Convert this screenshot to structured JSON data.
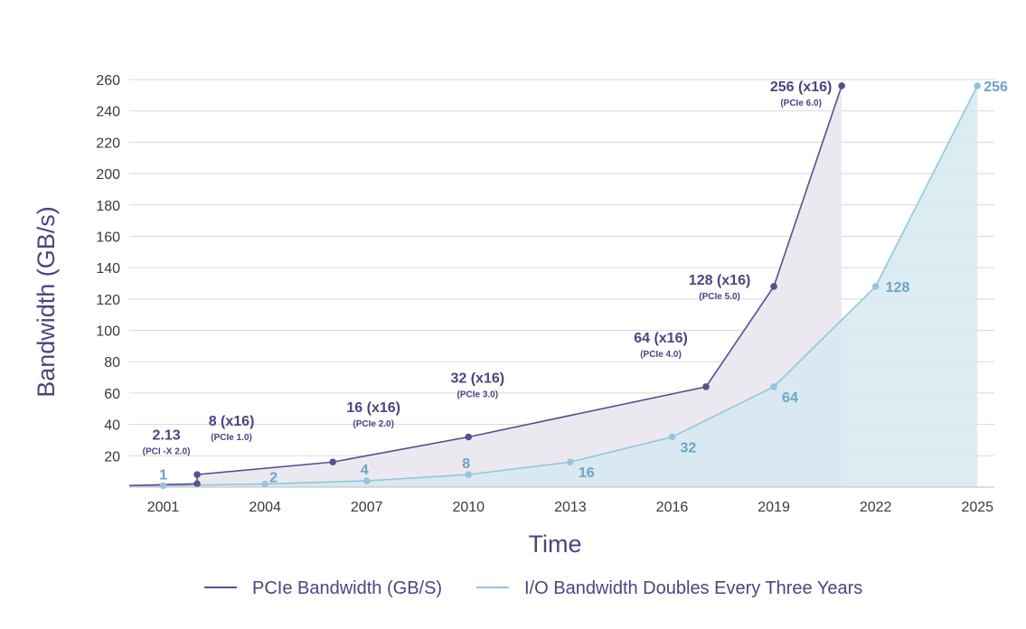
{
  "chart_data": {
    "type": "line",
    "title": "",
    "xlabel": "Time",
    "ylabel": "Bandwidth (GB/s)",
    "x_ticks": [
      2001,
      2004,
      2007,
      2010,
      2013,
      2016,
      2019,
      2022,
      2025
    ],
    "y_ticks": [
      20,
      40,
      60,
      80,
      100,
      120,
      140,
      160,
      180,
      200,
      220,
      240,
      260
    ],
    "xlim": [
      2000,
      2025.5
    ],
    "ylim": [
      0,
      260
    ],
    "grid": true,
    "legend_position": "bottom",
    "series": [
      {
        "name": "PCIe Bandwidth (GB/S)",
        "color": "#5a4f8e",
        "fill": "#ece8f0",
        "points": [
          {
            "x": 2002,
            "y": 2.13,
            "label": "2.13",
            "sub": "(PCI -X 2.0)"
          },
          {
            "x": 2002,
            "y": 8,
            "label": "8 (x16)",
            "sub": "(PCIe 1.0)"
          },
          {
            "x": 2006,
            "y": 16,
            "label": "16 (x16)",
            "sub": "(PCIe 2.0)"
          },
          {
            "x": 2010,
            "y": 32,
            "label": "32 (x16)",
            "sub": "(PCIe 3.0)"
          },
          {
            "x": 2017,
            "y": 64,
            "label": "64 (x16)",
            "sub": "(PCIe 4.0)"
          },
          {
            "x": 2019,
            "y": 128,
            "label": "128 (x16)",
            "sub": "(PCIe 5.0)"
          },
          {
            "x": 2021,
            "y": 256,
            "label": "256 (x16)",
            "sub": "(PCIe 6.0)"
          }
        ]
      },
      {
        "name": "I/O Bandwidth Doubles Every Three Years",
        "color": "#93c5db",
        "fill": "#d6e9f1",
        "points": [
          {
            "x": 2001,
            "y": 1,
            "label": "1"
          },
          {
            "x": 2004,
            "y": 2,
            "label": "2"
          },
          {
            "x": 2007,
            "y": 4,
            "label": "4"
          },
          {
            "x": 2010,
            "y": 8,
            "label": "8"
          },
          {
            "x": 2013,
            "y": 16,
            "label": "16"
          },
          {
            "x": 2016,
            "y": 32,
            "label": "32"
          },
          {
            "x": 2019,
            "y": 64,
            "label": "64"
          },
          {
            "x": 2022,
            "y": 128,
            "label": "128"
          },
          {
            "x": 2025,
            "y": 256,
            "label": "256"
          }
        ]
      }
    ]
  }
}
